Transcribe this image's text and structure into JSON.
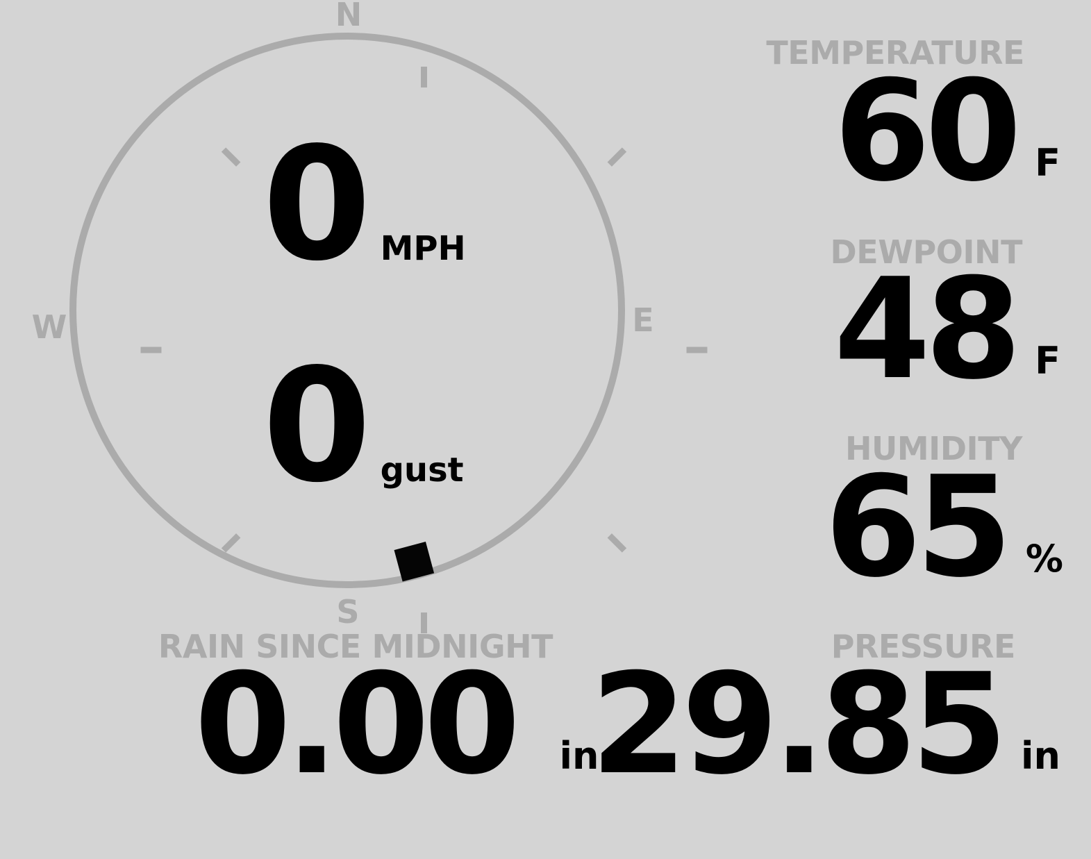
{
  "app": {
    "background_color": "#d4d4d4",
    "muted_color": "#ababab",
    "text_color": "#000000"
  },
  "wind_compass": {
    "cardinals": {
      "north": "N",
      "east": "E",
      "south": "S",
      "west": "W"
    },
    "speed": {
      "value": "0",
      "unit": "MPH"
    },
    "gust": {
      "value": "0",
      "unit": "gust"
    },
    "direction_marker": {
      "bearing_deg": 165
    }
  },
  "metrics": {
    "temperature": {
      "label": "TEMPERATURE",
      "value": "60",
      "unit": "F"
    },
    "dewpoint": {
      "label": "DEWPOINT",
      "value": "48",
      "unit": "F"
    },
    "humidity": {
      "label": "HUMIDITY",
      "value": "65",
      "unit": "%"
    },
    "rain": {
      "label": "RAIN SINCE MIDNIGHT",
      "value": "0.00",
      "unit": "in"
    },
    "pressure": {
      "label": "PRESSURE",
      "value": "29.85",
      "unit": "in"
    }
  }
}
